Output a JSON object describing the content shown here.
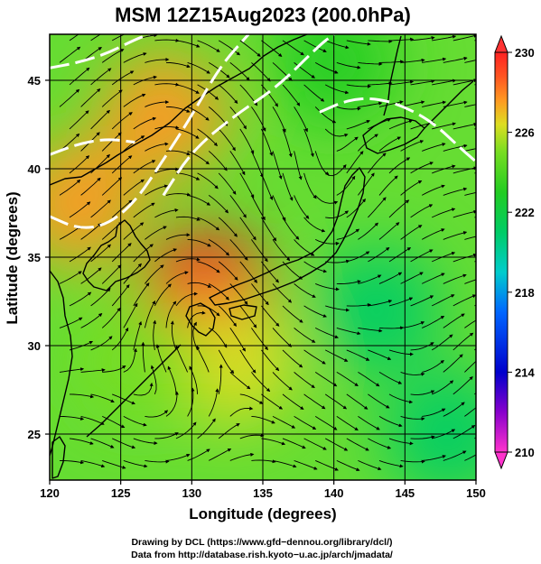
{
  "chart_data": {
    "type": "heatmap",
    "title": "MSM 12Z15Aug2023 (200.0hPa)",
    "xlabel": "Longitude (degrees)",
    "ylabel": "Latitude  (degrees)",
    "xlim": [
      120,
      150
    ],
    "ylim": [
      22.4,
      47.6
    ],
    "x_ticks": [
      "120",
      "125",
      "130",
      "135",
      "140",
      "145",
      "150"
    ],
    "y_ticks": [
      "25",
      "30",
      "35",
      "40",
      "45"
    ],
    "colorbar": {
      "min": 210,
      "max": 230,
      "ticks": [
        "230",
        "226",
        "222",
        "218",
        "214",
        "210"
      ],
      "colors": [
        "#ff33cc",
        "#8800cc",
        "#0000cc",
        "#0066ff",
        "#00cccc",
        "#00cc66",
        "#22cc22",
        "#77dd22",
        "#dddd22",
        "#ff9922",
        "#ff5522",
        "#ff2222"
      ]
    },
    "field_hotspots": [
      {
        "lon": 131,
        "lat": 33,
        "value": 230
      },
      {
        "lon": 122,
        "lat": 38,
        "value": 227.5
      },
      {
        "lon": 128,
        "lat": 43,
        "value": 227
      },
      {
        "lon": 133,
        "lat": 29,
        "value": 226.5
      },
      {
        "lon": 126,
        "lat": 29,
        "value": 225
      },
      {
        "lon": 143,
        "lat": 32,
        "value": 222
      },
      {
        "lon": 148,
        "lat": 25,
        "value": 221
      },
      {
        "lon": 140,
        "lat": 46,
        "value": 222.5
      }
    ],
    "contours": [
      {
        "value": 228,
        "style": "white dashed",
        "points": [
          [
            120,
            37.3
          ],
          [
            122,
            36.6
          ],
          [
            124,
            36.8
          ],
          [
            126,
            38.1
          ],
          [
            128,
            40.5
          ],
          [
            130,
            43.0
          ],
          [
            132,
            45.8
          ],
          [
            134,
            47.6
          ]
        ]
      },
      {
        "value": 228,
        "style": "white dashed",
        "points": [
          [
            120,
            40.8
          ],
          [
            122,
            41.4
          ],
          [
            124,
            41.7
          ],
          [
            126,
            41.5
          ]
        ]
      },
      {
        "value": 228,
        "style": "white dashed",
        "points": [
          [
            120,
            45.7
          ],
          [
            122,
            46.0
          ],
          [
            124,
            46.5
          ],
          [
            126,
            47.3
          ],
          [
            127,
            47.6
          ]
        ]
      },
      {
        "value": 224,
        "style": "white dashed",
        "points": [
          [
            128,
            38.5
          ],
          [
            130,
            41.0
          ],
          [
            133,
            43.0
          ],
          [
            136,
            44.6
          ],
          [
            139,
            47.0
          ],
          [
            140,
            47.6
          ]
        ]
      },
      {
        "value": 224,
        "style": "white dashed",
        "points": [
          [
            139,
            43.2
          ],
          [
            141,
            43.9
          ],
          [
            143,
            44.0
          ],
          [
            145,
            43.5
          ],
          [
            147,
            42.6
          ],
          [
            149,
            41.1
          ],
          [
            150,
            40.4
          ]
        ]
      }
    ]
  },
  "credits": {
    "line1": "Drawing by DCL (https://www.gfd−dennou.org/library/dcl/)",
    "line2": "Data from http://database.rish.kyoto−u.ac.jp/arch/jmadata/"
  }
}
